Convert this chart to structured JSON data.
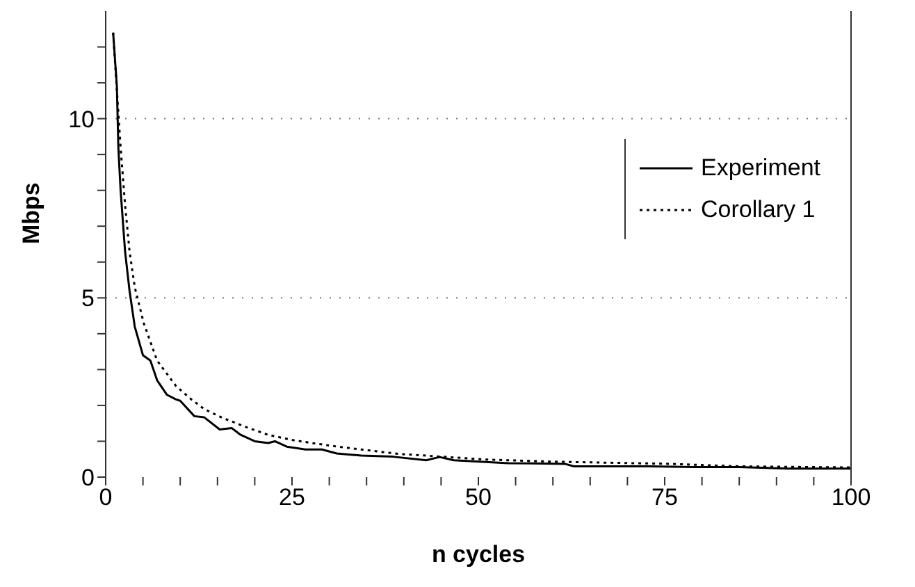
{
  "chart_data": {
    "type": "line",
    "xlabel": "n cycles",
    "ylabel": "Mbps",
    "xlim": [
      0,
      100
    ],
    "ylim": [
      0,
      13
    ],
    "xticks": [
      0,
      {
        "value": 5,
        "label": null
      },
      {
        "value": 10,
        "label": null
      },
      {
        "value": 15,
        "label": null
      },
      {
        "value": 20,
        "label": null
      },
      25,
      {
        "value": 30,
        "label": null
      },
      {
        "value": 35,
        "label": null
      },
      {
        "value": 40,
        "label": null
      },
      {
        "value": 45,
        "label": null
      },
      50,
      {
        "value": 55,
        "label": null
      },
      {
        "value": 60,
        "label": null
      },
      {
        "value": 65,
        "label": null
      },
      {
        "value": 70,
        "label": null
      },
      75,
      {
        "value": 80,
        "label": null
      },
      {
        "value": 85,
        "label": null
      },
      {
        "value": 90,
        "label": null
      },
      {
        "value": 95,
        "label": null
      },
      100
    ],
    "yticks": [
      0,
      {
        "value": 1,
        "label": null
      },
      {
        "value": 2,
        "label": null
      },
      {
        "value": 3,
        "label": null
      },
      {
        "value": 4,
        "label": null
      },
      5,
      {
        "value": 6,
        "label": null
      },
      {
        "value": 7,
        "label": null
      },
      {
        "value": 8,
        "label": null
      },
      {
        "value": 9,
        "label": null
      },
      10,
      {
        "value": 11,
        "label": null
      },
      {
        "value": 12,
        "label": null
      }
    ],
    "grid": "y",
    "legend": "top right",
    "marker": "none",
    "series": [
      {
        "name": "Experiment",
        "color": "#000000",
        "line_style": "solid",
        "x": [
          1,
          1.5,
          1.7,
          2,
          2.6,
          3.2,
          3.9,
          5,
          6,
          6.9,
          8.2,
          9.4,
          10,
          11.9,
          13.2,
          15.3,
          16.9,
          18.1,
          20,
          21.8,
          22.7,
          24.3,
          26.8,
          29,
          31,
          34.3,
          38.5,
          43,
          44.8,
          46.7,
          54,
          61.6,
          62.8,
          72.8,
          79,
          85,
          91.4,
          100
        ],
        "values": [
          12.4,
          10.9,
          9.2,
          8,
          6.3,
          5.2,
          4.2,
          3.4,
          3.25,
          2.7,
          2.3,
          2.17,
          2.13,
          1.7,
          1.67,
          1.33,
          1.37,
          1.18,
          1,
          0.95,
          1,
          0.85,
          0.77,
          0.77,
          0.66,
          0.6,
          0.57,
          0.47,
          0.56,
          0.47,
          0.39,
          0.37,
          0.3,
          0.3,
          0.28,
          0.28,
          0.24,
          0.24
        ]
      },
      {
        "name": "Corollary 1",
        "color": "#000000",
        "line_style": "dotted",
        "x": [
          1,
          2,
          2.6,
          3.2,
          3.9,
          5.1,
          6.9,
          9.4,
          11.3,
          13.2,
          15.6,
          18.8,
          21.8,
          24.9,
          28,
          31.1,
          34.3,
          39.2,
          51,
          60.3,
          75.8,
          85,
          100
        ],
        "values": [
          12.4,
          9.2,
          7.6,
          6.3,
          5.3,
          4.3,
          3.25,
          2.55,
          2.2,
          1.9,
          1.66,
          1.4,
          1.18,
          1.04,
          0.94,
          0.85,
          0.77,
          0.65,
          0.49,
          0.43,
          0.37,
          0.3,
          0.27
        ]
      }
    ]
  }
}
